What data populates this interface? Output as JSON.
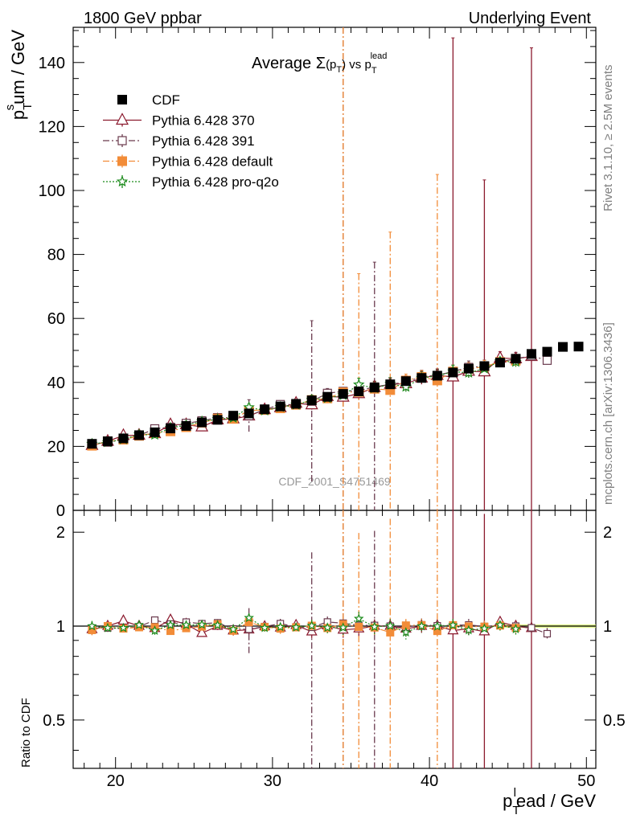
{
  "chart_data": {
    "type": "scatter",
    "header": {
      "left": "1800 GeV ppbar",
      "right": "Underlying Event"
    },
    "title": {
      "prefix": "Average ",
      "sigma": "Σ",
      "arg_open": "(p",
      "arg_sub": "T",
      "arg_close": ")",
      "mid": " vs p",
      "mid_sub": "T",
      "mid_sup": "lead"
    },
    "xlabel": {
      "main": "p",
      "sub": "T",
      "sup": "l",
      "rest": "ead / GeV"
    },
    "ylabel": {
      "main": "p",
      "sub": "T",
      "sup": "s",
      "rest": "um / GeV"
    },
    "ratio_ylabel": "Ratio to CDF",
    "side_text_top": "Rivet 3.1.10, ≥ 2.5M events",
    "side_text_bottom": "mcplots.cern.ch [arXiv:1306.3436]",
    "watermark": "CDF_2001_S4751469",
    "xlim": [
      17.3,
      50.6
    ],
    "ylim": [
      0,
      151
    ],
    "ratio_ylim": [
      0.35,
      2.35
    ],
    "x_ticks": [
      20,
      30,
      40,
      50
    ],
    "y_ticks": [
      0,
      20,
      40,
      60,
      80,
      100,
      120,
      140
    ],
    "ratio_ticks": [
      0.5,
      1,
      2
    ],
    "legend_position": "top-left",
    "series": [
      {
        "name": "CDF",
        "color": "#000000",
        "marker": "filled-square",
        "line": "none",
        "x": [
          18.5,
          19.5,
          20.5,
          21.5,
          22.5,
          23.5,
          24.5,
          25.5,
          26.5,
          27.5,
          28.5,
          29.5,
          30.5,
          31.5,
          32.5,
          33.5,
          34.5,
          35.5,
          36.5,
          37.5,
          38.5,
          39.5,
          40.5,
          41.5,
          42.5,
          43.5,
          44.5,
          45.5,
          46.5,
          47.5,
          48.5,
          49.5
        ],
        "y": [
          20.8,
          21.6,
          22.5,
          23.5,
          24.4,
          25.6,
          26.4,
          27.5,
          28.3,
          29.6,
          30.3,
          31.6,
          32.5,
          33.3,
          34.4,
          35.5,
          36.4,
          37.2,
          38.4,
          39.4,
          40.4,
          41.4,
          42.1,
          43.1,
          44.3,
          45.1,
          46.2,
          47.4,
          48.9,
          49.6,
          51.1,
          51.2
        ]
      },
      {
        "name": "Pythia 6.428 370",
        "color": "#8b1a2e",
        "marker": "open-triangle",
        "line": "solid",
        "x": [
          18.5,
          19.5,
          20.5,
          21.5,
          22.5,
          23.5,
          24.5,
          25.5,
          26.5,
          27.5,
          28.5,
          29.5,
          30.5,
          31.5,
          32.5,
          33.5,
          34.5,
          35.5,
          36.5,
          37.5,
          38.5,
          39.5,
          40.5,
          41.5,
          42.5,
          43.5,
          44.5,
          45.5,
          46.5
        ],
        "y": [
          20.3,
          21.6,
          23.4,
          23.5,
          24.0,
          26.8,
          26.8,
          26.1,
          28.3,
          28.6,
          29.5,
          31.5,
          32.1,
          33.5,
          33.0,
          35.6,
          35.4,
          36.5,
          38.4,
          39.4,
          39.6,
          41.4,
          42.2,
          41.7,
          43.5,
          43.3,
          47.6,
          47.4,
          48.1
        ],
        "y_err_high": [
          0.8,
          0.6,
          0.6,
          0.6,
          0.7,
          0.6,
          0.6,
          0.6,
          0.8,
          1.0,
          1.0,
          1.0,
          1.2,
          1.0,
          1.5,
          1.5,
          2.0,
          2.0,
          2.0,
          2.0,
          2.0,
          2.0,
          2.0,
          106,
          2.0,
          60,
          2.0,
          2.0,
          96.5
        ]
      },
      {
        "name": "Pythia 6.428 391",
        "color": "#6b3b4e",
        "marker": "open-square",
        "line": "dashdot",
        "x": [
          18.5,
          19.5,
          20.5,
          21.5,
          22.5,
          23.5,
          24.5,
          25.5,
          26.5,
          27.5,
          28.5,
          29.5,
          30.5,
          31.5,
          32.5,
          33.5,
          34.5,
          35.5,
          36.5,
          37.5,
          38.5,
          39.5,
          40.5,
          41.5,
          42.5,
          43.5,
          44.5,
          45.5,
          46.5,
          47.5
        ],
        "y": [
          20.5,
          21.3,
          22.1,
          23.4,
          25.5,
          26.0,
          27.2,
          28.0,
          29.0,
          29.0,
          29.6,
          31.5,
          33.1,
          33.1,
          34.1,
          36.6,
          37.2,
          37.4,
          38.6,
          39.4,
          40.1,
          41.8,
          42.2,
          43.4,
          44.7,
          45.0,
          46.4,
          47.4,
          48.3,
          46.9
        ],
        "y_err_high": [
          0.8,
          0.6,
          0.6,
          0.6,
          0.7,
          0.6,
          0.6,
          0.6,
          0.8,
          1.0,
          5.0,
          1.0,
          1.2,
          1.0,
          25.2,
          1.5,
          115,
          2.0,
          39.0,
          2.0,
          2.0,
          2.0,
          2.0,
          2.0,
          2.0,
          2.0,
          2.0,
          2.0,
          2.0,
          2.0
        ]
      },
      {
        "name": "Pythia 6.428 default",
        "color": "#f28c38",
        "marker": "filled-square",
        "line": "dashdot",
        "x": [
          18.5,
          19.5,
          20.5,
          21.5,
          22.5,
          23.5,
          24.5,
          25.5,
          26.5,
          27.5,
          28.5,
          29.5,
          30.5,
          31.5,
          32.5,
          33.5,
          34.5,
          35.5,
          36.5,
          37.5,
          38.5,
          39.5,
          40.5,
          41.5,
          42.5,
          43.5,
          44.5,
          45.5
        ],
        "y": [
          20.2,
          21.6,
          22.1,
          23.3,
          24.2,
          24.7,
          26.0,
          27.4,
          28.7,
          28.6,
          31.2,
          31.4,
          31.9,
          33.0,
          34.5,
          35.0,
          36.9,
          37.0,
          38.0,
          37.6,
          40.6,
          41.7,
          40.6,
          43.4,
          44.2,
          44.9,
          46.4,
          46.8
        ],
        "y_err_high": [
          0.8,
          0.6,
          0.6,
          0.6,
          0.7,
          0.6,
          0.6,
          0.6,
          0.8,
          1.0,
          1.0,
          1.0,
          1.2,
          1.0,
          1.5,
          1.5,
          115,
          37.0,
          2.0,
          49.4,
          2.0,
          2.0,
          64.4,
          2.0,
          2.0,
          2.0,
          2.0,
          2.0
        ]
      },
      {
        "name": "Pythia 6.428 pro-q2o",
        "color": "#1a8a1a",
        "marker": "open-star",
        "line": "dotted",
        "x": [
          18.5,
          19.5,
          20.5,
          21.5,
          22.5,
          23.5,
          24.5,
          25.5,
          26.5,
          27.5,
          28.5,
          29.5,
          30.5,
          31.5,
          32.5,
          33.5,
          34.5,
          35.5,
          36.5,
          37.5,
          38.5,
          39.5,
          40.5,
          41.5,
          42.5,
          43.5,
          44.5,
          45.5
        ],
        "y": [
          20.8,
          21.3,
          22.2,
          23.7,
          23.6,
          25.8,
          26.6,
          27.8,
          28.5,
          28.9,
          32.2,
          31.2,
          32.3,
          33.0,
          34.5,
          35.1,
          36.0,
          39.3,
          38.2,
          39.5,
          38.6,
          41.4,
          42.0,
          43.4,
          43.0,
          44.3,
          46.6,
          46.4
        ],
        "y_err_high": [
          0.8,
          0.6,
          0.6,
          0.6,
          0.7,
          0.6,
          0.6,
          0.6,
          0.8,
          1.0,
          1.0,
          1.0,
          1.2,
          1.0,
          1.5,
          1.5,
          2.0,
          2.0,
          2.0,
          2.0,
          2.0,
          2.0,
          2.0,
          2.0,
          2.0,
          2.0,
          2.0,
          2.0
        ]
      }
    ]
  }
}
